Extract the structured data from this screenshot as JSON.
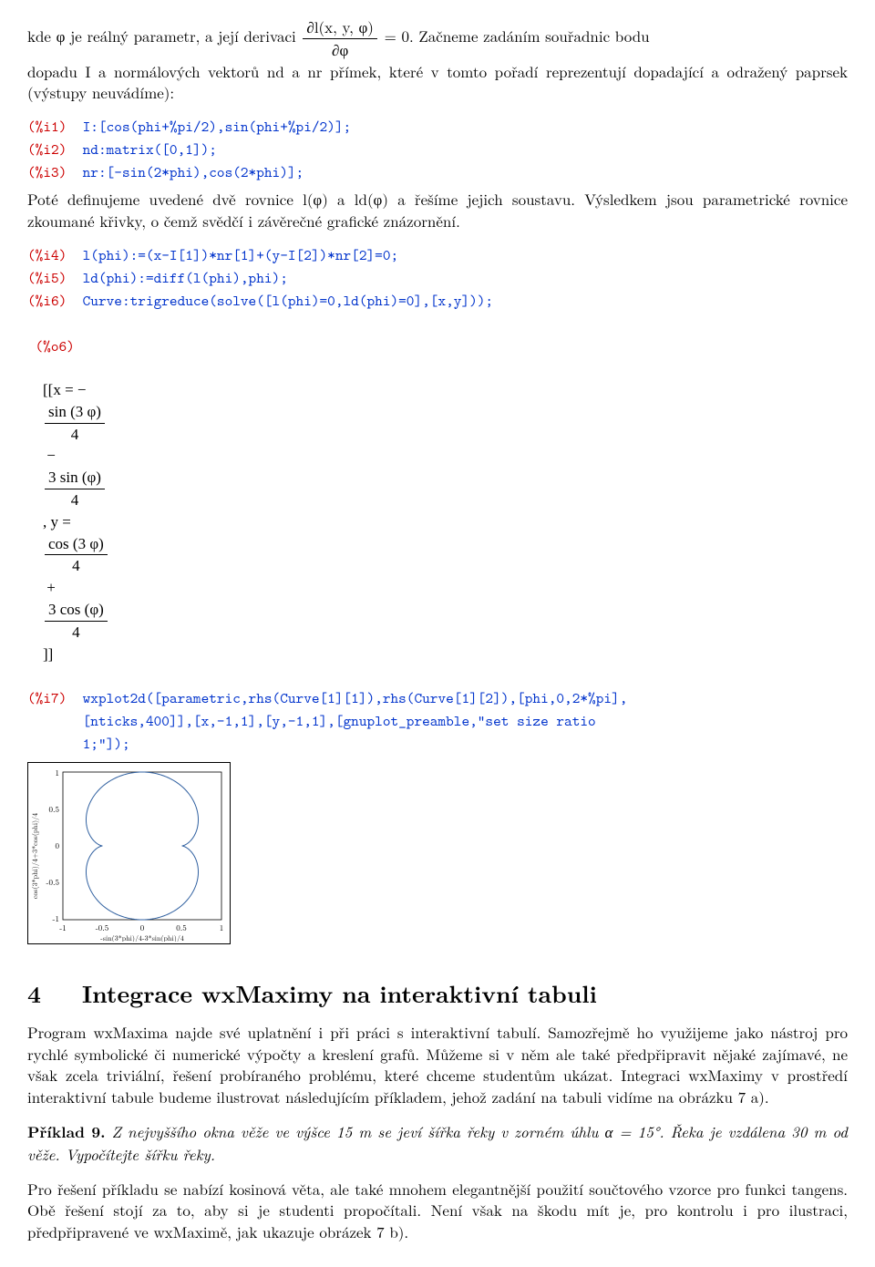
{
  "intro1": "kde φ je reálný parametr, a její derivaci ",
  "deriv_num": "∂l(x, y, φ)",
  "deriv_den": "∂φ",
  "eq0": " = 0. Začneme zadáním souřadnic bodu",
  "intro2": "dopadu I a normálových vektorů nd a nr přímek, které v tomto pořadí reprezentují dopadající a odražený paprsek (výstupy neuvádíme):",
  "i1_label": "(%i1)  ",
  "i1_code": "I:[cos(phi+%pi/2),sin(phi+%pi/2)];",
  "i2_label": "(%i2)  ",
  "i2_code": "nd:matrix([0,1]);",
  "i3_label": "(%i3)  ",
  "i3_code": "nr:[-sin(2*phi),cos(2*phi)];",
  "mid1": "Poté definujeme uvedené dvě rovnice l(φ) a ld(φ) a řešíme jejich soustavu. Výsledkem jsou parametrické rovnice zkoumané křivky, o čemž svědčí i závěrečné grafické znázornění.",
  "i4_label": "(%i4)  ",
  "i4_code": "l(phi):=(x-I[1])*nr[1]+(y-I[2])*nr[2]=0;",
  "i5_label": "(%i5)  ",
  "i5_code": "ld(phi):=diff(l(phi),phi);",
  "i6_label": "(%i6)  ",
  "i6_code": "Curve:trigreduce(solve([l(phi)=0,ld(phi)=0],[x,y]));",
  "o6_label": "(%o6)  ",
  "o6_x_pre": "[[x = −",
  "o6_f1_num": "sin (3 φ)",
  "o6_f1_den": "4",
  "o6_minus": " − ",
  "o6_f2_num": "3 sin (φ)",
  "o6_f2_den": "4",
  "o6_ymid": ", y = ",
  "o6_f3_num": "cos (3 φ)",
  "o6_f3_den": "4",
  "o6_plus": " + ",
  "o6_f4_num": "3 cos (φ)",
  "o6_f4_den": "4",
  "o6_close": "]]",
  "i7_label": "(%i7)  ",
  "i7_code1": "wxplot2d([parametric,rhs(Curve[1][1]),rhs(Curve[1][2]),[phi,0,2*%pi],",
  "i7_code2": "[nticks,400]],[x,-1,1],[y,-1,1],[gnuplot_preamble,\"set size ratio",
  "i7_code3": "1;\"]);",
  "section_num": "4",
  "section_title": "Integrace wxMaximy na interaktivní tabuli",
  "sec_p1": "Program wxMaxima najde své uplatnění i při práci s interaktivní tabulí. Samozřejmě ho využijeme jako nástroj pro rychlé symbolické či numerické výpočty a kreslení grafů. Můžeme si v něm ale také předpřipravit nějaké zajímavé, ne však zcela triviální, řešení probíraného problému, které chceme studentům ukázat. Integraci wxMaximy v prostředí interaktivní tabule budeme ilustrovat následujícím příkladem, jehož zadání na tabuli vidíme na obrázku 7 a).",
  "ex_label": "Příklad 9.",
  "ex_text": " Z nejvyššího okna věže ve výšce 15 m se jeví šířka řeky v zorném úhlu α = 15°. Řeka je vzdálena 30 m od věže. Vypočítejte šířku řeky.",
  "sec_p2": "Pro řešení příkladu se nabízí kosinová věta, ale také mnohem elegantnější použití součtového vzorce pro funkci tangens. Obě řešení stojí za to, aby si je studenti propočítali. Není však na škodu mít je, pro kontrolu i pro ilustraci, předpřipravené ve wxMaximě, jak ukazuje obrázek 7 b).",
  "plot": {
    "xlabel": "-sin(3*phi)/4-3*sin(phi)/4",
    "ylabel": "cos(3*phi)/4+3*cos(phi)/4",
    "xticks": [
      "-1",
      "-0.5",
      "0",
      "0.5",
      "1"
    ],
    "yticks": [
      "-1",
      "-0.5",
      "0",
      "0.5",
      "1"
    ],
    "line_color": "#3060a0"
  }
}
